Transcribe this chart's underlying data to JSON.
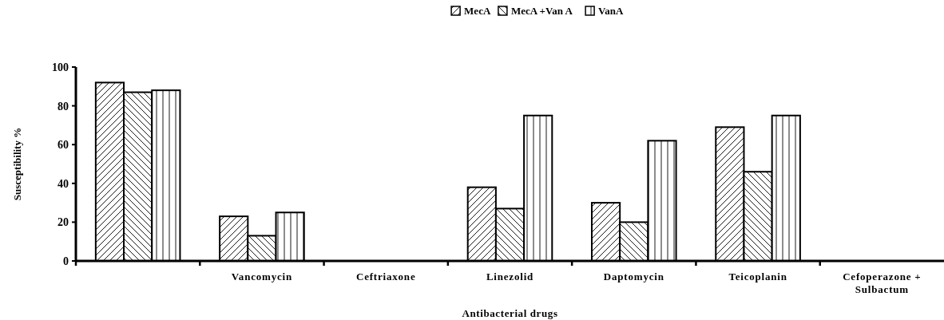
{
  "chart_data": {
    "type": "bar",
    "xlabel": "Antibacterial drugs",
    "ylabel": "Susceptibility %",
    "categories": [
      null,
      "Vancomycin",
      "Ceftriaxone",
      "Linezolid",
      "Daptomycin",
      "Teicoplanin",
      "Cefoperazone + Sulbactum"
    ],
    "series": [
      {
        "name": "MecA",
        "color": "#000000",
        "values": [
          92,
          23,
          0,
          38,
          30,
          69,
          0
        ]
      },
      {
        "name": "MecA +Van A",
        "color": "#000000",
        "values": [
          87,
          13,
          0,
          27,
          20,
          46,
          0
        ]
      },
      {
        "name": "VanA",
        "color": "#000000",
        "values": [
          88,
          25,
          0,
          75,
          62,
          75,
          0
        ]
      }
    ],
    "ylim": [
      0,
      100
    ],
    "yticks": [
      0,
      20,
      40,
      60,
      80,
      100
    ],
    "legend": "top",
    "grid": false
  }
}
